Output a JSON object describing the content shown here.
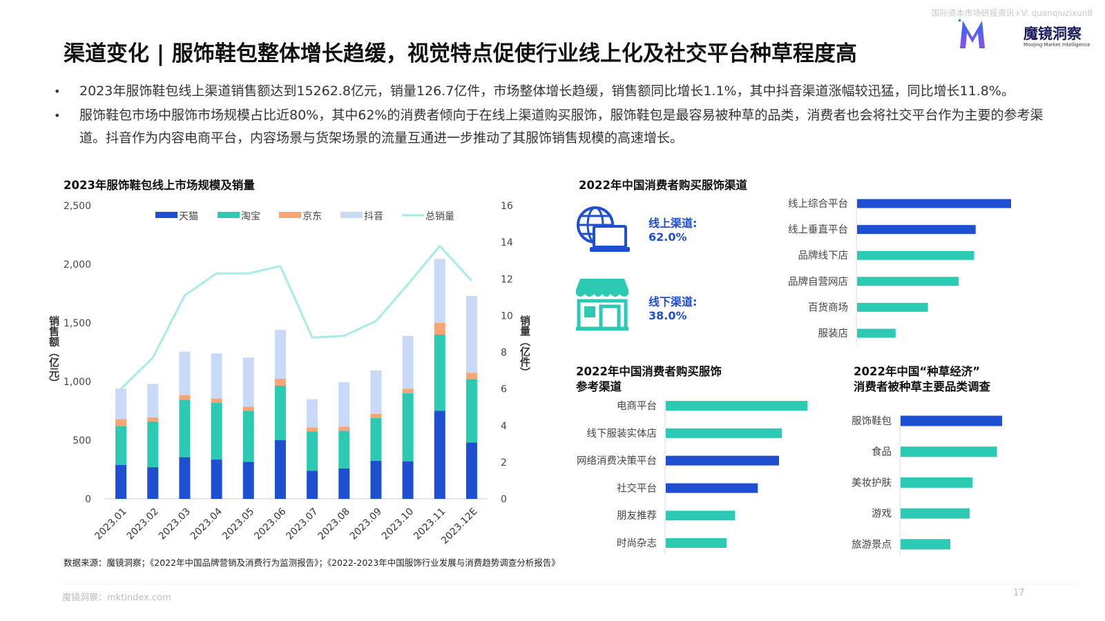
{
  "watermark": "国际资本市场研报资讯+V: quanqiuzixun8",
  "logo": {
    "name": "魔镜洞察",
    "sub": "Moojing Market Intelligence"
  },
  "title": "渠道变化 | 服饰鞋包整体增长趋缓，视觉特点促使行业线上化及社交平台种草程度高",
  "bullets": [
    "2023年服饰鞋包线上渠道销售额达到15262.8亿元，销量126.7亿件，市场整体增长趋缓，销售额同比增长1.1%，其中抖音渠道涨幅较迅猛，同比增长11.8%。",
    "服饰鞋包市场中服饰市场规模占比近80%，其中62%的消费者倾向于在线上渠道购买服饰，服饰鞋包是最容易被种草的品类，消费者也会将社交平台作为主要的参考渠道。抖音作为内容电商平台，内容场景与货架场景的流量互通进一步推动了其服饰销售规模的高速增长。"
  ],
  "colors": {
    "tmall": "#1f4fd1",
    "taobao": "#2dcab3",
    "jd": "#f9a474",
    "douyin": "#c9d9f8",
    "total": "#a6ece5",
    "blue_bar": "#1f4fd1",
    "teal_bar": "#2dcab3"
  },
  "chart_data": [
    {
      "type": "bar",
      "stacked": true,
      "title": "2023年服饰鞋包线上市场规模及销量",
      "categories": [
        "2023.01",
        "2023.02",
        "2023.03",
        "2023.04",
        "2023.05",
        "2023.06",
        "2023.07",
        "2023.08",
        "2023.09",
        "2023.10",
        "2023.11",
        "2023.12E"
      ],
      "ylabel": "销售额（亿元）",
      "ylabel_right": "销量（亿件）",
      "ylim": [
        0,
        2500
      ],
      "yticks": [
        "2,500",
        "2,000",
        "1,500",
        "1,000",
        "500",
        "0"
      ],
      "ylim_right": [
        0,
        16
      ],
      "yticks_right": [
        "16",
        "14",
        "12",
        "10",
        "8",
        "6",
        "4",
        "2",
        "0"
      ],
      "legend_position": "top",
      "series": [
        {
          "name": "天猫",
          "values": [
            290,
            270,
            355,
            335,
            315,
            500,
            240,
            260,
            325,
            320,
            750,
            480
          ]
        },
        {
          "name": "淘宝",
          "values": [
            330,
            390,
            490,
            485,
            435,
            465,
            335,
            320,
            365,
            580,
            650,
            540
          ]
        },
        {
          "name": "京东",
          "values": [
            60,
            35,
            40,
            35,
            35,
            60,
            35,
            35,
            35,
            40,
            100,
            55
          ]
        },
        {
          "name": "抖音",
          "values": [
            260,
            285,
            370,
            385,
            420,
            415,
            240,
            380,
            370,
            450,
            545,
            655
          ]
        }
      ],
      "line": {
        "name": "总销量",
        "axis": "right",
        "values": [
          6.0,
          7.7,
          11.1,
          12.3,
          12.3,
          12.7,
          8.8,
          8.9,
          9.7,
          11.7,
          13.8,
          11.9
        ]
      }
    },
    {
      "type": "bar",
      "orientation": "horizontal",
      "title": "2022年中国消费者购买服饰渠道",
      "categories": [
        "线上综合平台",
        "线上垂直平台",
        "品牌线下店",
        "品牌自营网店",
        "百货商场",
        "服装店"
      ],
      "values": [
        100,
        77,
        76,
        66,
        46,
        25
      ],
      "colors": [
        "blue",
        "blue",
        "teal",
        "teal",
        "teal",
        "teal"
      ],
      "channels": [
        {
          "label": "线上渠道:",
          "value": "62.0%",
          "icon": "laptop-globe-icon"
        },
        {
          "label": "线下渠道:",
          "value": "38.0%",
          "icon": "storefront-icon"
        }
      ]
    },
    {
      "type": "bar",
      "orientation": "horizontal",
      "title": [
        "2022年中国消费者购买服饰",
        "参考渠道"
      ],
      "categories": [
        "电商平台",
        "线下服装实体店",
        "网络消费决策平台",
        "社交平台",
        "朋友推荐",
        "时尚杂志"
      ],
      "values": [
        100,
        82,
        80,
        65,
        49,
        43
      ],
      "colors": [
        "teal",
        "teal",
        "blue",
        "blue",
        "teal",
        "teal"
      ]
    },
    {
      "type": "bar",
      "orientation": "horizontal",
      "title": [
        "2022年中国“种草经济”",
        "消费者被种草主要品类调查"
      ],
      "categories": [
        "服饰鞋包",
        "食品",
        "美妆护肤",
        "游戏",
        "旅游景点"
      ],
      "values": [
        100,
        95,
        71,
        68,
        49
      ],
      "colors": [
        "blue",
        "teal",
        "teal",
        "teal",
        "teal"
      ]
    }
  ],
  "source": "数据来源：魔镜洞察；《2022年中国品牌营销及消费行为监测报告》；《2022-2023年中国服饰行业发展与消费趋势调查分析报告》",
  "footer": "魔镜洞察：mktindex.com",
  "page_number": "17"
}
